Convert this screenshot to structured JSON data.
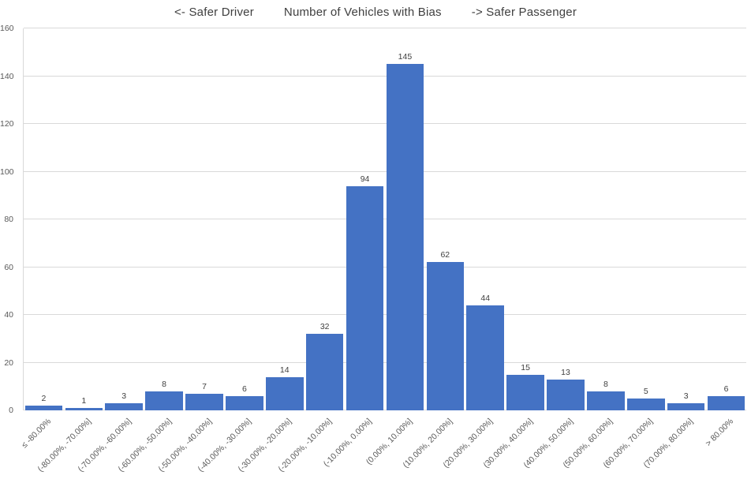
{
  "chart_data": {
    "type": "bar",
    "title": "Number of Vehicles with Bias",
    "left_annotation": "<- Safer Driver",
    "right_annotation": "-> Safer Passenger",
    "categories": [
      "≤ -80.00%",
      "(-80.00%, -70.00%]",
      "(-70.00%, -60.00%]",
      "(-60.00%, -50.00%]",
      "(-50.00%, -40.00%]",
      "(-40.00%, -30.00%]",
      "(-30.00%, -20.00%]",
      "(-20.00%, -10.00%]",
      "(-10.00%, 0.00%]",
      "(0.00%, 10.00%]",
      "(10.00%, 20.00%]",
      "(20.00%, 30.00%]",
      "(30.00%, 40.00%]",
      "(40.00%, 50.00%]",
      "(50.00%, 60.00%]",
      "(60.00%, 70.00%]",
      "(70.00%, 80.00%]",
      "> 80.00%"
    ],
    "values": [
      2,
      1,
      3,
      8,
      7,
      6,
      14,
      32,
      94,
      145,
      62,
      44,
      15,
      13,
      8,
      5,
      3,
      6
    ],
    "xlabel": "",
    "ylabel": "",
    "ylim": [
      0,
      160
    ],
    "yticks": [
      0,
      20,
      40,
      60,
      80,
      100,
      120,
      140,
      160
    ],
    "grid": true,
    "legend": false,
    "data_labels": true,
    "bar_color": "#4472C4",
    "gridline_color": "#D9D9D9",
    "axis_text_color": "#595959",
    "label_text_color": "#404040"
  }
}
